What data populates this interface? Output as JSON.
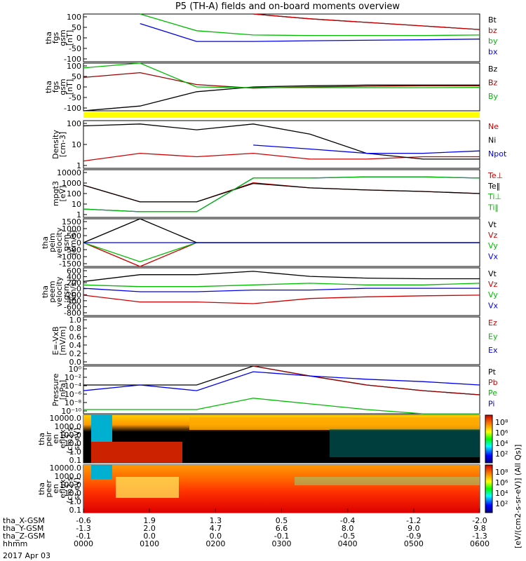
{
  "title": "P5 (TH-A) fields and on-board moments overview",
  "date_label": "2017 Apr 03",
  "panels": [
    {
      "id": "fgs",
      "ylabel": [
        "tha",
        "fgs",
        "gsm",
        "[nT]"
      ],
      "ticks": [
        "100",
        "50",
        "0",
        "-50",
        "-100"
      ],
      "legend": [
        {
          "t": "Bt",
          "c": "#000000"
        },
        {
          "t": "bz",
          "c": "#cc0000"
        },
        {
          "t": "by",
          "c": "#00bb00"
        },
        {
          "t": "bx",
          "c": "#0000ee"
        }
      ]
    },
    {
      "id": "fgs2",
      "ylabel": [
        "tha",
        "fgs",
        "gsm",
        "[nT]"
      ],
      "ticks": [
        "100",
        "50",
        "0",
        "-50",
        "-100"
      ],
      "legend": [
        {
          "t": "Bz",
          "c": "#000000"
        },
        {
          "t": "Bz",
          "c": "#990000"
        },
        {
          "t": "By",
          "c": "#00bb00"
        }
      ]
    },
    {
      "id": "density",
      "ylabel": [
        "Density",
        "[cm-3]"
      ],
      "ticks": [
        "100",
        "10",
        "1"
      ],
      "legend": [
        {
          "t": "Ne",
          "c": "#cc0000"
        },
        {
          "t": "Ni",
          "c": "#000000"
        },
        {
          "t": "Npot",
          "c": "#0000ee"
        }
      ]
    },
    {
      "id": "temp",
      "ylabel": [
        "mpgt3",
        "[eV]"
      ],
      "ticks": [
        "10000",
        "1000",
        "100",
        "10",
        "1"
      ],
      "legend": [
        {
          "t": "Te⊥",
          "c": "#cc0000"
        },
        {
          "t": "Te‖",
          "c": "#000000"
        },
        {
          "t": "Ti⊥",
          "c": "#00bb00"
        },
        {
          "t": "Ti‖",
          "c": "#00bb00"
        }
      ]
    },
    {
      "id": "peim",
      "ylabel": [
        "tha",
        "peim",
        "velocity",
        "gsm",
        "[km/s]"
      ],
      "ticks": [
        "1500",
        "1000",
        "500",
        "0",
        "-500",
        "-1000",
        "-1500"
      ],
      "legend": [
        {
          "t": "Vt",
          "c": "#000000"
        },
        {
          "t": "Vz",
          "c": "#cc0000"
        },
        {
          "t": "Vy",
          "c": "#00bb00"
        },
        {
          "t": "Vx",
          "c": "#0000ee"
        }
      ]
    },
    {
      "id": "peem",
      "ylabel": [
        "tha",
        "peem",
        "velocity",
        "gsm",
        "[km/s]"
      ],
      "ticks": [
        "600",
        "400",
        "200",
        "0",
        "-200",
        "-400",
        "-600",
        "-800"
      ],
      "legend": [
        {
          "t": "Vt",
          "c": "#000000"
        },
        {
          "t": "Vz",
          "c": "#cc0000"
        },
        {
          "t": "Vy",
          "c": "#00bb00"
        },
        {
          "t": "Vx",
          "c": "#0000ee"
        }
      ]
    },
    {
      "id": "efield",
      "ylabel": [
        "E=-VxB",
        "[mV/m]"
      ],
      "ticks": [
        "1.0",
        "0.8",
        "0.6",
        "0.4",
        "0.2",
        "0.0"
      ],
      "legend": [
        {
          "t": "Ez",
          "c": "#cc0000"
        },
        {
          "t": "Ey",
          "c": "#00bb00"
        },
        {
          "t": "Ex",
          "c": "#0000ee"
        }
      ]
    },
    {
      "id": "pressure",
      "ylabel": [
        "Pressure",
        "[nPa]"
      ],
      "ticks": [
        "10⁰",
        "10⁻²",
        "10⁻⁴",
        "10⁻⁶",
        "10⁻⁸",
        "10⁻¹⁰"
      ],
      "legend": [
        {
          "t": "Pt",
          "c": "#000000"
        },
        {
          "t": "Pb",
          "c": "#cc0000"
        },
        {
          "t": "Pe",
          "c": "#00bb00"
        },
        {
          "t": "Pi",
          "c": "#0000ee"
        }
      ]
    },
    {
      "id": "peir",
      "ylabel": [
        "tha",
        "peir",
        "en",
        "eflux",
        "(cm2-s-",
        "sr-eV)"
      ],
      "ticks": [
        "10000.0",
        "1000.0",
        "100.0",
        "10.0",
        "1.0",
        "0.1"
      ]
    },
    {
      "id": "peer",
      "ylabel": [
        "tha",
        "peer",
        "en",
        "eflux",
        "(cm2-s-",
        "sr-eV)"
      ],
      "ticks": [
        "10000.0",
        "1000.0",
        "100.0",
        "10.0",
        "1.0",
        "0.1"
      ]
    }
  ],
  "colorbar": {
    "label": "[eV/(cm2-s-sr-eV)] (All Qs)]",
    "ticks_top": [
      "10⁸",
      "10⁶",
      "10⁴",
      "10²"
    ],
    "ticks_bottom": [
      "10⁸",
      "10⁶",
      "10⁴",
      "10²"
    ]
  },
  "x_rows": [
    {
      "label": "tha_X-GSM",
      "values": [
        "-0.6",
        "1.9",
        "1.3",
        "0.5",
        "-0.4",
        "-1.2",
        "-2.0"
      ]
    },
    {
      "label": "tha_Y-GSM",
      "values": [
        "-1.3",
        "2.0",
        "4.7",
        "6.6",
        "8.0",
        "9.0",
        "9.8"
      ]
    },
    {
      "label": "tha_Z-GSM",
      "values": [
        "-0.1",
        "0.0",
        "0.0",
        "-0.1",
        "-0.5",
        "-0.9",
        "-1.3"
      ]
    },
    {
      "label": "hhmm",
      "values": [
        "0000",
        "0100",
        "0200",
        "0300",
        "0400",
        "0500",
        "0600"
      ]
    }
  ],
  "chart_data": [
    {
      "type": "line",
      "panel": "fgs",
      "x": [
        "0000",
        "0030",
        "0100",
        "0200",
        "0300",
        "0400",
        "0500",
        "0600"
      ],
      "ylim": [
        -100,
        100
      ],
      "series": [
        {
          "name": "Bt",
          "values": [
            null,
            null,
            null,
            100,
            80,
            65,
            50,
            35
          ]
        },
        {
          "name": "bz",
          "values": [
            null,
            null,
            null,
            100,
            80,
            65,
            50,
            35
          ]
        },
        {
          "name": "by",
          "values": [
            null,
            100,
            30,
            12,
            10,
            10,
            10,
            12
          ]
        },
        {
          "name": "bx",
          "values": [
            null,
            60,
            -15,
            -15,
            -12,
            -10,
            -8,
            -5
          ]
        }
      ]
    },
    {
      "type": "line",
      "panel": "fgs2",
      "x": [
        "0000",
        "0030",
        "0100",
        "0200",
        "0300",
        "0400",
        "0500",
        "0600"
      ],
      "ylim": [
        -100,
        100
      ],
      "series": [
        {
          "name": "Bz",
          "values": [
            -100,
            -80,
            -20,
            0,
            5,
            8,
            8,
            8
          ]
        },
        {
          "name": "Bz",
          "values": [
            40,
            60,
            10,
            -5,
            0,
            3,
            5,
            5
          ]
        },
        {
          "name": "By",
          "values": [
            80,
            100,
            0,
            -3,
            -3,
            -3,
            -3,
            -2
          ]
        }
      ]
    },
    {
      "type": "line",
      "panel": "density",
      "x": [
        "0000",
        "0030",
        "0100",
        "0200",
        "0300",
        "0400",
        "0500",
        "0600"
      ],
      "ylog": true,
      "ylim": [
        0.5,
        150
      ],
      "series": [
        {
          "name": "Ne",
          "values": [
            1.2,
            3,
            2,
            3,
            1.5,
            1.5,
            2,
            2
          ]
        },
        {
          "name": "Ni",
          "values": [
            80,
            100,
            50,
            100,
            30,
            3,
            1.5,
            1.5
          ]
        },
        {
          "name": "Npot",
          "values": [
            null,
            null,
            null,
            8,
            5,
            3,
            3,
            4
          ]
        }
      ]
    },
    {
      "type": "line",
      "panel": "temp",
      "x": [
        "0000",
        "0030",
        "0100",
        "0200",
        "0300",
        "0400",
        "0500",
        "0600"
      ],
      "ylog": true,
      "ylim": [
        1,
        10000
      ],
      "series": [
        {
          "name": "Te⊥",
          "values": [
            500,
            20,
            20,
            800,
            300,
            200,
            150,
            100
          ]
        },
        {
          "name": "Te‖",
          "values": [
            500,
            20,
            20,
            700,
            300,
            200,
            150,
            100
          ]
        },
        {
          "name": "Ti⊥",
          "values": [
            5,
            3,
            3,
            2000,
            2000,
            2500,
            2500,
            2000
          ]
        },
        {
          "name": "Ti‖",
          "values": [
            5,
            3,
            3,
            2000,
            2000,
            2500,
            2500,
            2000
          ]
        }
      ]
    },
    {
      "type": "line",
      "panel": "peim",
      "x": [
        "0000",
        "0030",
        "0100",
        "0200",
        "0300",
        "0400",
        "0500",
        "0600"
      ],
      "ylim": [
        -1500,
        1500
      ],
      "series": [
        {
          "name": "Vt",
          "values": [
            0,
            1500,
            0,
            0,
            0,
            0,
            0,
            0
          ]
        },
        {
          "name": "Vz",
          "values": [
            0,
            -1500,
            0,
            0,
            0,
            0,
            0,
            0
          ]
        },
        {
          "name": "Vy",
          "values": [
            0,
            -1200,
            0,
            0,
            0,
            0,
            0,
            0
          ]
        },
        {
          "name": "Vx",
          "values": [
            0,
            0,
            0,
            0,
            0,
            0,
            0,
            0
          ]
        }
      ]
    },
    {
      "type": "line",
      "panel": "peem",
      "x": [
        "0000",
        "0030",
        "0100",
        "0200",
        "0300",
        "0400",
        "0500",
        "0600"
      ],
      "ylim": [
        -800,
        600
      ],
      "series": [
        {
          "name": "Vt",
          "values": [
            200,
            400,
            400,
            500,
            350,
            300,
            280,
            280
          ]
        },
        {
          "name": "Vz",
          "values": [
            -200,
            -400,
            -400,
            -450,
            -300,
            -250,
            -220,
            -200
          ]
        },
        {
          "name": "Vy",
          "values": [
            100,
            50,
            50,
            100,
            150,
            100,
            100,
            150
          ]
        },
        {
          "name": "Vx",
          "values": [
            0,
            -100,
            -100,
            -50,
            -50,
            0,
            0,
            0
          ]
        }
      ]
    },
    {
      "type": "line",
      "panel": "pressure",
      "x": [
        "0000",
        "0030",
        "0100",
        "0200",
        "0300",
        "0400",
        "0500",
        "0600"
      ],
      "ylog": true,
      "series": [
        {
          "name": "Pt",
          "values": [
            0.1,
            0.1,
            0.1,
            1,
            0.3,
            0.1,
            0.05,
            0.03
          ]
        },
        {
          "name": "Pb",
          "values": [
            null,
            null,
            null,
            1,
            0.3,
            0.1,
            0.05,
            0.03
          ]
        },
        {
          "name": "Pe",
          "values": [
            0.005,
            0.005,
            0.005,
            0.02,
            0.01,
            0.005,
            0.003,
            0.003
          ]
        },
        {
          "name": "Pi",
          "values": [
            0.05,
            0.1,
            0.05,
            0.5,
            0.3,
            0.2,
            0.15,
            0.1
          ]
        }
      ]
    },
    {
      "type": "heatmap",
      "panel": "peir",
      "x": [
        "0000",
        "0100",
        "0200",
        "0300",
        "0400",
        "0500",
        "0600"
      ]
    },
    {
      "type": "heatmap",
      "panel": "peer",
      "x": [
        "0000",
        "0100",
        "0200",
        "0300",
        "0400",
        "0500",
        "0600"
      ]
    }
  ]
}
